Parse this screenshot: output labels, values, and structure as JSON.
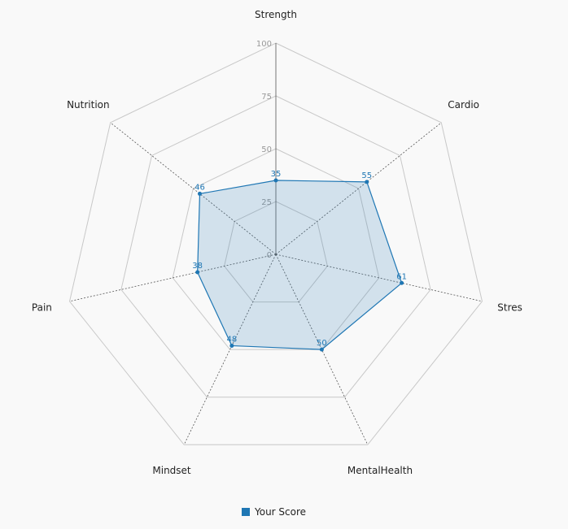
{
  "chart_data": {
    "type": "radar",
    "axes": [
      "Strength",
      "Cardio",
      "Stres",
      "MentalHealth",
      "Mindset",
      "Pain",
      "Nutrition"
    ],
    "rlim": [
      0,
      100
    ],
    "ticks": [
      0,
      25,
      50,
      75,
      100
    ],
    "series": [
      {
        "name": "Your Score",
        "values": [
          35,
          55,
          61,
          50,
          48,
          38,
          46
        ]
      }
    ],
    "legend": "bottom",
    "colors": {
      "series": "#1f77b4",
      "fill": "rgba(31,119,180,0.18)",
      "grid": "#c8c8c8",
      "spoke": "#555555",
      "tick_label": "#999999",
      "axis_label": "#222222"
    }
  }
}
